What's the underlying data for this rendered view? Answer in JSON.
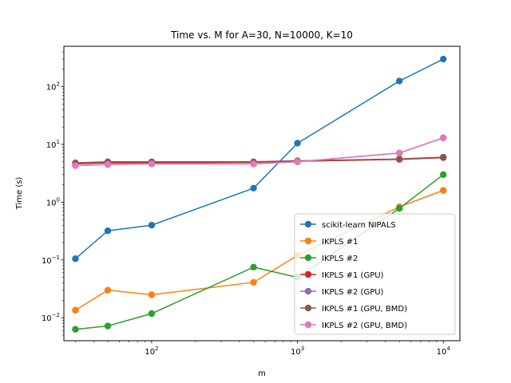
{
  "chart_data": {
    "type": "line",
    "title": "Time vs. M for A=30, N=10000, K=10",
    "xlabel": "m",
    "ylabel": "Time (s)",
    "xscale": "log",
    "yscale": "log",
    "xlim": [
      25,
      13000
    ],
    "ylim": [
      0.004,
      500
    ],
    "x_ticks": [
      {
        "value": 100,
        "base": "10",
        "exp": "2"
      },
      {
        "value": 1000,
        "base": "10",
        "exp": "3"
      },
      {
        "value": 10000,
        "base": "10",
        "exp": "4"
      }
    ],
    "y_ticks": [
      {
        "value": 0.01,
        "base": "10",
        "exp": "−2"
      },
      {
        "value": 0.1,
        "base": "10",
        "exp": "−1"
      },
      {
        "value": 1,
        "base": "10",
        "exp": "0"
      },
      {
        "value": 10,
        "base": "10",
        "exp": "1"
      },
      {
        "value": 100,
        "base": "10",
        "exp": "2"
      }
    ],
    "grid": false,
    "legend_position": "lower-right",
    "series": [
      {
        "name": "scikit-learn NIPALS",
        "color": "#1f77b4",
        "x": [
          30,
          50,
          100,
          500,
          1000,
          5000,
          10000
        ],
        "y": [
          0.105,
          0.32,
          0.4,
          1.75,
          10.5,
          125,
          300
        ]
      },
      {
        "name": "IKPLS #1",
        "color": "#ff7f0e",
        "x": [
          30,
          50,
          100,
          500,
          1000,
          5000,
          10000
        ],
        "y": [
          0.0135,
          0.03,
          0.025,
          0.041,
          0.12,
          0.83,
          1.6
        ]
      },
      {
        "name": "IKPLS #2",
        "color": "#2ca02c",
        "x": [
          30,
          50,
          100,
          500,
          1000,
          5000,
          10000
        ],
        "y": [
          0.0063,
          0.0072,
          0.0118,
          0.075,
          0.05,
          0.78,
          3.0
        ]
      },
      {
        "name": "IKPLS #1 (GPU)",
        "color": "#d62728",
        "x": [
          30,
          50,
          100,
          500,
          1000,
          5000,
          10000
        ],
        "y": [
          4.6,
          4.8,
          4.8,
          4.9,
          5.1,
          5.5,
          5.9
        ]
      },
      {
        "name": "IKPLS #2 (GPU)",
        "color": "#9467bd",
        "x": [
          30,
          50,
          100,
          500,
          1000,
          5000,
          10000
        ],
        "y": [
          4.3,
          4.5,
          4.6,
          4.6,
          5.0,
          7.1,
          13.0
        ]
      },
      {
        "name": "IKPLS #1 (GPU, BMD)",
        "color": "#8c564b",
        "x": [
          30,
          50,
          100,
          500,
          1000,
          5000,
          10000
        ],
        "y": [
          4.8,
          5.0,
          5.0,
          5.0,
          5.2,
          5.6,
          6.0
        ]
      },
      {
        "name": "IKPLS #2 (GPU, BMD)",
        "color": "#e377c2",
        "x": [
          30,
          50,
          100,
          500,
          1000,
          5000,
          10000
        ],
        "y": [
          4.3,
          4.5,
          4.6,
          4.6,
          5.0,
          7.1,
          13.0
        ]
      }
    ]
  }
}
